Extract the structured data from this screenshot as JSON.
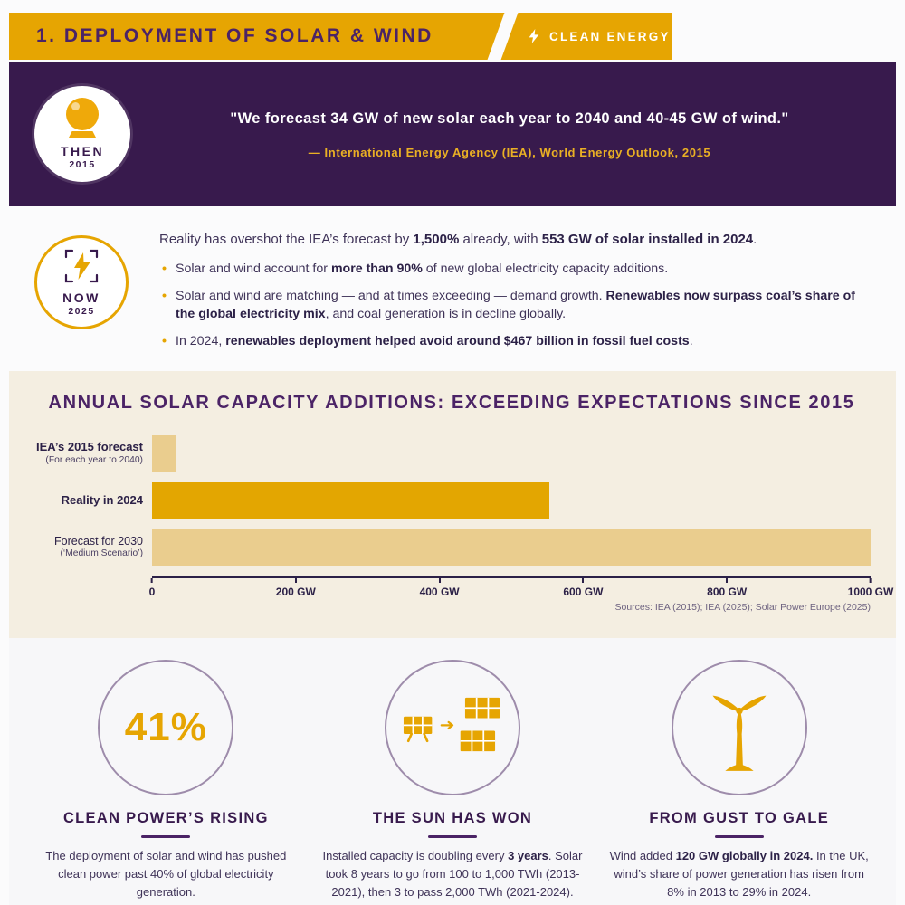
{
  "header": {
    "title": "1. DEPLOYMENT OF SOLAR & WIND",
    "badge_label": "CLEAN ENERGY"
  },
  "then_banner": {
    "label": "THEN",
    "year": "2015",
    "quote_segments": [
      {
        "t": "\"We forecast ",
        "b": false
      },
      {
        "t": "34 GW of new solar",
        "b": true
      },
      {
        "t": " each year to 2040 and ",
        "b": false
      },
      {
        "t": "40-45 GW of wind",
        "b": true
      },
      {
        "t": ".\"",
        "b": false
      }
    ],
    "attribution": "— International Energy Agency (IEA), World Energy Outlook, 2015"
  },
  "now_section": {
    "label": "NOW",
    "year": "2025",
    "intro_segments": [
      {
        "t": "Reality has overshot the IEA’s forecast by ",
        "b": false
      },
      {
        "t": "1,500%",
        "b": true
      },
      {
        "t": " already, with ",
        "b": false
      },
      {
        "t": "553 GW of solar installed in 2024",
        "b": true
      },
      {
        "t": ".",
        "b": false
      }
    ],
    "bullets": [
      {
        "segments": [
          {
            "t": "Solar and wind account for ",
            "b": false
          },
          {
            "t": "more than 90%",
            "b": true
          },
          {
            "t": " of new global electricity capacity additions.",
            "b": false
          }
        ]
      },
      {
        "segments": [
          {
            "t": "Solar and wind are matching — and at times exceeding — demand growth. ",
            "b": false
          },
          {
            "t": "Renewables now surpass coal’s share of the global electricity mix",
            "b": true
          },
          {
            "t": ", and coal generation is in decline globally.",
            "b": false
          }
        ]
      },
      {
        "segments": [
          {
            "t": "In 2024, ",
            "b": false
          },
          {
            "t": "renewables deployment helped avoid around $467 billion in fossil fuel costs",
            "b": true
          },
          {
            "t": ".",
            "b": false
          }
        ]
      }
    ]
  },
  "chart_data": {
    "type": "bar",
    "orientation": "horizontal",
    "title": "ANNUAL SOLAR CAPACITY ADDITIONS: EXCEEDING EXPECTATIONS SINCE 2015",
    "categories": [
      "IEA’s 2015 forecast",
      "Reality in 2024",
      "Forecast for 2030"
    ],
    "category_notes": [
      "(For each year to 2040)",
      "",
      "(‘Medium Scenario’)"
    ],
    "values": [
      34,
      553,
      1000
    ],
    "unit": "GW",
    "xlim": [
      0,
      1000
    ],
    "x_ticks": [
      "0",
      "200 GW",
      "400 GW",
      "600 GW",
      "800 GW",
      "1000 GW"
    ],
    "bar_colors": [
      "#eacd8e",
      "#e3a601",
      "#eacd8e"
    ],
    "grid": false,
    "legend": false,
    "sources": "Sources: IEA (2015); IEA (2025); Solar Power Europe (2025)"
  },
  "cards": [
    {
      "circle_value": "41%",
      "icon": "percent-stat",
      "heading": "CLEAN POWER’S RISING",
      "body_segments": [
        {
          "t": "The deployment of solar and wind has pushed clean power past 40% of global electricity generation.",
          "b": false
        }
      ]
    },
    {
      "icon": "solar-panels-growth",
      "heading": "THE SUN HAS WON",
      "body_segments": [
        {
          "t": "Installed capacity is doubling every ",
          "b": false
        },
        {
          "t": "3 years",
          "b": true
        },
        {
          "t": ". Solar took 8 years to go from 100 to 1,000 TWh (2013-2021), then 3 to pass 2,000 TWh (2021-2024).",
          "b": false
        }
      ]
    },
    {
      "icon": "wind-turbine",
      "heading": "FROM GUST TO GALE",
      "body_segments": [
        {
          "t": "Wind added ",
          "b": false
        },
        {
          "t": "120 GW globally in 2024.",
          "b": true
        },
        {
          "t": " In the UK, wind’s share of power generation has risen from 8% in 2013 to 29% in 2024.",
          "b": false
        }
      ]
    }
  ],
  "icons": {
    "header_badge": "lightning-icon",
    "then_stamp": "crystal-ball-icon",
    "now_stamp": "lightning-viewfinder-icon"
  },
  "colors": {
    "gold": "#e6a502",
    "light_gold_bar": "#eacd8e",
    "deep_purple": "#381a4d",
    "heading_purple": "#4b2366",
    "body_text": "#3f3358",
    "chart_background": "#f4eee1"
  }
}
